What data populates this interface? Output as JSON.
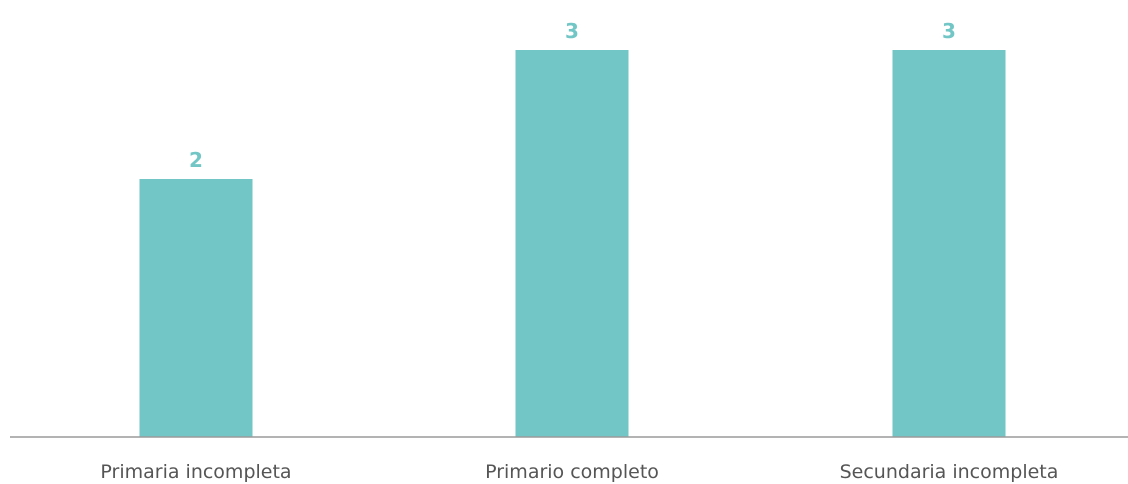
{
  "chart_data": {
    "type": "bar",
    "categories": [
      "Primaria incompleta",
      "Primario completo",
      "Secundaria incompleta"
    ],
    "values": [
      2,
      3,
      3
    ],
    "data_labels": [
      "2",
      "3",
      "3"
    ],
    "title": "",
    "xlabel": "",
    "ylabel": "",
    "ylim": [
      0,
      3
    ],
    "grid": false,
    "legend": "none",
    "bar_color": "#72C6C6",
    "label_color": "#72C6C6",
    "axis_color": "#9a9a9a",
    "tick_label_color": "#555555"
  }
}
